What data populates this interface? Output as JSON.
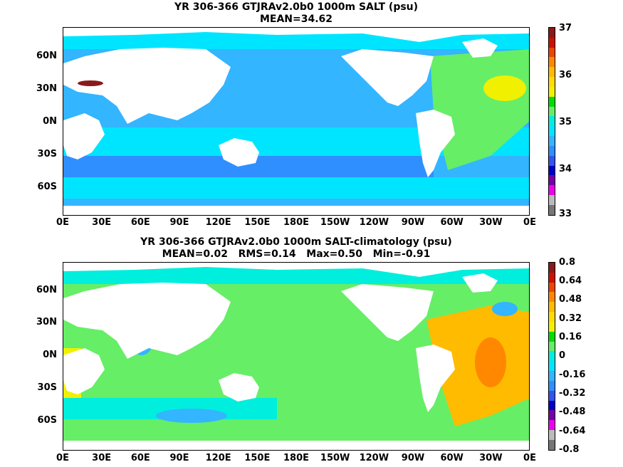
{
  "panels": [
    {
      "title_line1": "YR 306-366 GTJRAv2.0b0 1000m SALT (psu)",
      "title_line2": "MEAN=34.62",
      "lat_labels": [
        "60N",
        "30N",
        "0N",
        "30S",
        "60S"
      ],
      "lon_labels": [
        "0E",
        "30E",
        "60E",
        "90E",
        "120E",
        "150E",
        "180E",
        "150W",
        "120W",
        "90W",
        "60W",
        "30W",
        "0E"
      ],
      "colorbar": {
        "labels": [
          "37",
          "36",
          "35",
          "34",
          "33"
        ],
        "colors": [
          "#8b1a1a",
          "#cc1100",
          "#ee4400",
          "#ff8800",
          "#ffbb00",
          "#ffdd00",
          "#f0f000",
          "#00dd00",
          "#66ee66",
          "#00eedd",
          "#00e5ff",
          "#33b5ff",
          "#2f8fff",
          "#3355ee",
          "#0000cc",
          "#7700aa",
          "#ee00ee",
          "#bbbbbb",
          "#777777"
        ]
      }
    },
    {
      "title_line1": "YR 306-366 GTJRAv2.0b0 1000m SALT-climatology (psu)",
      "title_line2": "MEAN=0.02   RMS=0.14   Max=0.50   Min=-0.91",
      "lat_labels": [
        "60N",
        "30N",
        "0N",
        "30S",
        "60S"
      ],
      "lon_labels": [
        "0E",
        "30E",
        "60E",
        "90E",
        "120E",
        "150E",
        "180E",
        "150W",
        "120W",
        "90W",
        "60W",
        "30W",
        "0E"
      ],
      "colorbar": {
        "labels": [
          "0.8",
          "0.64",
          "0.48",
          "0.32",
          "0.16",
          "0",
          "-0.16",
          "-0.32",
          "-0.48",
          "-0.64",
          "-0.8"
        ],
        "colors": [
          "#8b1a1a",
          "#cc1100",
          "#ee4400",
          "#ff8800",
          "#ffbb00",
          "#ffdd00",
          "#f0f000",
          "#00dd00",
          "#66ee66",
          "#00eedd",
          "#00e5ff",
          "#33b5ff",
          "#2f8fff",
          "#3355ee",
          "#0000cc",
          "#7700aa",
          "#ee00ee",
          "#bbbbbb",
          "#777777"
        ]
      }
    }
  ],
  "colors": {
    "land": "#ffffff",
    "ice_band": "#ffffff",
    "map1_ocean": "#33b5ff",
    "map1_band": "#00e5ff",
    "map1_deep": "#2f8fff",
    "map1_atlantic": "#66ee66",
    "map1_high": "#f0f000",
    "map1_med": "#8b1a1a",
    "map2_ocean": "#66ee66",
    "map2_cyan": "#00eedd",
    "map2_blue": "#33b5ff",
    "map2_orange": "#ffbb00",
    "map2_dark_orange": "#ff8800",
    "map2_yellow": "#f0f000"
  }
}
